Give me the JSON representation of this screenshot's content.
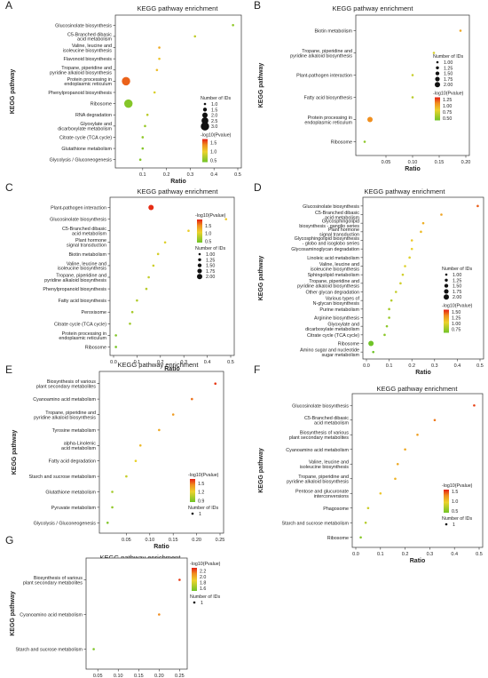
{
  "figure": {
    "panels": [
      "A",
      "B",
      "C",
      "D",
      "E",
      "F",
      "G"
    ]
  },
  "chart_data": [
    {
      "panel": "A",
      "type": "scatter",
      "title": "KEGG pathway enrichment",
      "xlabel": "Ratio",
      "ylabel": "KEGG pathway",
      "xlim": [
        0,
        0.5
      ],
      "xticks": [
        0.1,
        0.2,
        0.3,
        0.4,
        0.5
      ],
      "categories": [
        "Glucosinolate biosynthesis",
        "C5-Branched dibasic acid metabolism",
        "Valine, leucine and isoleucine biosynthesis",
        "Flavonoid biosynthesis",
        "Tropane, piperidine and pyridine alkaloid biosynthesis",
        "Protein processing in endoplasmic reticulum",
        "Phenylpropanoid biosynthesis",
        "Ribosome",
        "RNA degradation",
        "Glyoxylate and dicarboxylate metabolism",
        "Citrate cycle (TCA cycle)",
        "Glutathione metabolism",
        "Glycolysis / Gluconeogenesis"
      ],
      "x": [
        0.48,
        0.32,
        0.17,
        0.17,
        0.16,
        0.03,
        0.15,
        0.04,
        0.12,
        0.11,
        0.1,
        0.1,
        0.09
      ],
      "count": [
        1,
        1,
        1,
        1,
        1,
        3,
        1,
        3,
        1,
        1,
        1,
        1,
        1
      ],
      "pvalue": [
        0.55,
        0.78,
        1.2,
        1.05,
        1.1,
        1.5,
        0.9,
        0.5,
        0.75,
        0.6,
        0.55,
        0.5,
        0.5
      ],
      "size_legend": {
        "title": "Number of IDs",
        "values": [
          "1.0",
          "1.5",
          "2.0",
          "2.5",
          "3.0"
        ]
      },
      "color_legend": {
        "title": "-log10(Pvalue)",
        "values": [
          "1.5",
          "1.0",
          "0.5"
        ],
        "min": 0.4,
        "max": 1.7
      }
    },
    {
      "panel": "B",
      "type": "scatter",
      "title": "KEGG pathway enrichment",
      "xlabel": "Ratio",
      "ylabel": "KEGG pathway",
      "xlim": [
        0,
        0.2
      ],
      "xticks": [
        0.05,
        0.1,
        0.15,
        0.2
      ],
      "xticklabels": [
        "0.05",
        "0.10",
        "0.15",
        "0.20"
      ],
      "categories": [
        "Biotin metabolism",
        "Tropane, piperidine and pyridine alkaloid biosynthesis",
        "Plant-pathogen interaction",
        "Fatty acid biosynthesis",
        "Protein processing in endoplasmic reticulum",
        "Ribosome"
      ],
      "x": [
        0.19,
        0.14,
        0.1,
        0.1,
        0.02,
        0.01
      ],
      "count": [
        1,
        1,
        1,
        1,
        2,
        1
      ],
      "pvalue": [
        1.0,
        0.75,
        0.7,
        0.65,
        1.1,
        0.5
      ],
      "size_legend": {
        "title": "Number of IDs",
        "values": [
          "1.00",
          "1.25",
          "1.50",
          "1.75",
          "2.00"
        ]
      },
      "color_legend": {
        "title": "-log10(Pvalue)",
        "values": [
          "1.25",
          "1.00",
          "0.75",
          "0.50"
        ],
        "min": 0.4,
        "max": 1.35
      }
    },
    {
      "panel": "C",
      "type": "scatter",
      "title": "KEGG pathway enrichment",
      "xlabel": "Ratio",
      "ylabel": "",
      "xlim": [
        0,
        0.5
      ],
      "xticks": [
        0.0,
        0.1,
        0.2,
        0.3,
        0.4,
        0.5
      ],
      "categories": [
        "Plant-pathogen interaction",
        "Glucosinolate biosynthesis",
        "C5-Branched dibasic acid metabolism",
        "Plant hormone signal transduction",
        "Biotin metabolism",
        "Valine, leucine and isoleucine biosynthesis",
        "Tropane, piperidine and pyridine alkaloid biosynthesis",
        "Phenylpropanoid biosynthesis",
        "Fatty acid biosynthesis",
        "Peroxisome",
        "Citrate cycle (TCA cycle)",
        "Protein processing in endoplasmic reticulum",
        "Ribosome"
      ],
      "x": [
        0.16,
        0.48,
        0.32,
        0.22,
        0.19,
        0.17,
        0.15,
        0.14,
        0.1,
        0.08,
        0.07,
        0.01,
        0.01
      ],
      "count": [
        2,
        1,
        1,
        1,
        1,
        1,
        1,
        1,
        1,
        1,
        1,
        1,
        1
      ],
      "pvalue": [
        1.85,
        1.15,
        1.1,
        1.0,
        0.95,
        0.9,
        0.85,
        0.8,
        0.75,
        0.7,
        0.65,
        0.5,
        0.45
      ],
      "size_legend": {
        "title": "Number of IDs",
        "values": [
          "1.00",
          "1.25",
          "1.50",
          "1.75",
          "2.00"
        ]
      },
      "color_legend": {
        "title": "-log10(Pvalue)",
        "values": [
          "1.5",
          "1.0",
          "0.5"
        ],
        "min": 0.4,
        "max": 1.9
      }
    },
    {
      "panel": "D",
      "type": "scatter",
      "title": "KEGG pathway enrichment",
      "xlabel": "Ratio",
      "ylabel": "KEGG pathway",
      "xlim": [
        0,
        0.5
      ],
      "xticks": [
        0.0,
        0.1,
        0.2,
        0.3,
        0.4,
        0.5
      ],
      "categories": [
        "Glucosinolate biosynthesis",
        "C5-Branched dibasic acid metabolism",
        "Glycosphingolipid biosynthesis - ganglio series",
        "Plant hormone signal transduction",
        "Glycosphingolipid biosynthesis - globo and isoglobo series",
        "Glycosaminoglycan degradation",
        "Linoleic acid metabolism",
        "Valine, leucine and isoleucine biosynthesis",
        "Sphingolipid metabolism",
        "Tropane, piperidine and pyridine alkaloid biosynthesis",
        "Other glycan degradation",
        "Various types of N-glycan biosynthesis",
        "Purine metabolism",
        "Arginine biosynthesis",
        "Glyoxylate and dicarboxylate metabolism",
        "Citrate cycle (TCA cycle)",
        "Ribosome",
        "Amino sugar and nucleotide sugar metabolism"
      ],
      "x": [
        0.49,
        0.33,
        0.25,
        0.24,
        0.2,
        0.2,
        0.19,
        0.17,
        0.16,
        0.15,
        0.13,
        0.11,
        0.1,
        0.1,
        0.09,
        0.08,
        0.02,
        0.03
      ],
      "count": [
        1,
        1,
        1,
        1,
        1,
        1,
        1,
        1,
        1,
        1,
        1,
        1,
        1,
        1,
        1,
        1,
        2,
        1
      ],
      "pvalue": [
        1.45,
        1.25,
        1.2,
        1.15,
        1.1,
        1.05,
        1.0,
        1.0,
        0.95,
        0.95,
        0.9,
        0.85,
        0.8,
        0.75,
        0.7,
        0.7,
        0.5,
        0.55
      ],
      "size_legend": {
        "title": "Number of IDs",
        "values": [
          "1.00",
          "1.25",
          "1.50",
          "1.75",
          "2.00"
        ]
      },
      "color_legend": {
        "title": "-log10(Pvalue)",
        "values": [
          "1.50",
          "1.25",
          "1.00",
          "0.75"
        ],
        "min": 0.6,
        "max": 1.6
      }
    },
    {
      "panel": "E",
      "type": "scatter",
      "title": "KEGG pathway enrichment",
      "xlabel": "Ratio",
      "ylabel": "KEGG pathway",
      "xlim": [
        0,
        0.25
      ],
      "xticks": [
        0.05,
        0.1,
        0.15,
        0.2,
        0.25
      ],
      "xticklabels": [
        "0.05",
        "0.10",
        "0.15",
        "0.20",
        "0.25"
      ],
      "categories": [
        "Biosynthesis of various plant secondary metabolites",
        "Cyanoamino acid metabolism",
        "Tropane, piperidine and pyridine alkaloid biosynthesis",
        "Tyrosine metabolism",
        "alpha-Linolenic acid metabolism",
        "Fatty acid degradation",
        "Starch and sucrose metabolism",
        "Glutathione metabolism",
        "Pyruvate metabolism",
        "Glycolysis / Gluconeogenesis"
      ],
      "x": [
        0.24,
        0.19,
        0.15,
        0.12,
        0.08,
        0.07,
        0.05,
        0.02,
        0.02,
        0.01
      ],
      "count": [
        1,
        1,
        1,
        1,
        1,
        1,
        1,
        1,
        1,
        1
      ],
      "pvalue": [
        1.6,
        1.5,
        1.4,
        1.35,
        1.3,
        1.2,
        1.1,
        1.0,
        0.95,
        0.9
      ],
      "size_legend": {
        "title": "Number of IDs",
        "values": [
          "1"
        ]
      },
      "color_legend": {
        "title": "-log10(Pvalue)",
        "values": [
          "1.5",
          "1.2",
          "0.9"
        ],
        "min": 0.85,
        "max": 1.65
      }
    },
    {
      "panel": "F",
      "type": "scatter",
      "title": "KEGG pathway enrichment",
      "xlabel": "Ratio",
      "ylabel": "KEGG pathway",
      "xlim": [
        0,
        0.5
      ],
      "xticks": [
        0.0,
        0.1,
        0.2,
        0.3,
        0.4,
        0.5
      ],
      "categories": [
        "Glucosinolate biosynthesis",
        "C5-Branched dibasic acid metabolism",
        "Biosynthesis of various plant secondary metabolites",
        "Cyanoamino acid metabolism",
        "Valine, leucine and isoleucine biosynthesis",
        "Tropane, piperidine and pyridine alkaloid biosynthesis",
        "Pentose and glucuronate interconversions",
        "Phagosome",
        "Starch and sucrose metabolism",
        "Ribosome"
      ],
      "x": [
        0.48,
        0.32,
        0.25,
        0.2,
        0.17,
        0.16,
        0.1,
        0.05,
        0.04,
        0.02
      ],
      "count": [
        1,
        1,
        1,
        1,
        1,
        1,
        1,
        1,
        1,
        1
      ],
      "pvalue": [
        1.5,
        1.35,
        1.2,
        1.15,
        1.15,
        1.1,
        1.0,
        0.8,
        0.7,
        0.5
      ],
      "size_legend": {
        "title": "Number of IDs",
        "values": [
          "1"
        ]
      },
      "color_legend": {
        "title": "-log10(Pvalue)",
        "values": [
          "1.5",
          "1.0",
          "0.5"
        ],
        "min": 0.4,
        "max": 1.6
      }
    },
    {
      "panel": "G",
      "type": "scatter",
      "title": "KEGG pathway enrichment",
      "xlabel": "Ratio",
      "ylabel": "KEGG pathway",
      "xlim": [
        0.03,
        0.26
      ],
      "xticks": [
        0.05,
        0.1,
        0.15,
        0.2,
        0.25
      ],
      "xticklabels": [
        "0.05",
        "0.10",
        "0.15",
        "0.20",
        "0.25"
      ],
      "categories": [
        "Biosynthesis of various plant secondary metabolites",
        "Cyanoamino acid metabolism",
        "Starch and sucrose metabolism"
      ],
      "x": [
        0.25,
        0.2,
        0.04
      ],
      "count": [
        1,
        1,
        1
      ],
      "pvalue": [
        2.25,
        2.1,
        1.55
      ],
      "size_legend": {
        "title": "Number of IDs",
        "values": [
          "1"
        ]
      },
      "color_legend": {
        "title": "-log10(Pvalue)",
        "values": [
          "2.2",
          "2.0",
          "1.8",
          "1.6"
        ],
        "min": 1.5,
        "max": 2.3
      }
    }
  ]
}
